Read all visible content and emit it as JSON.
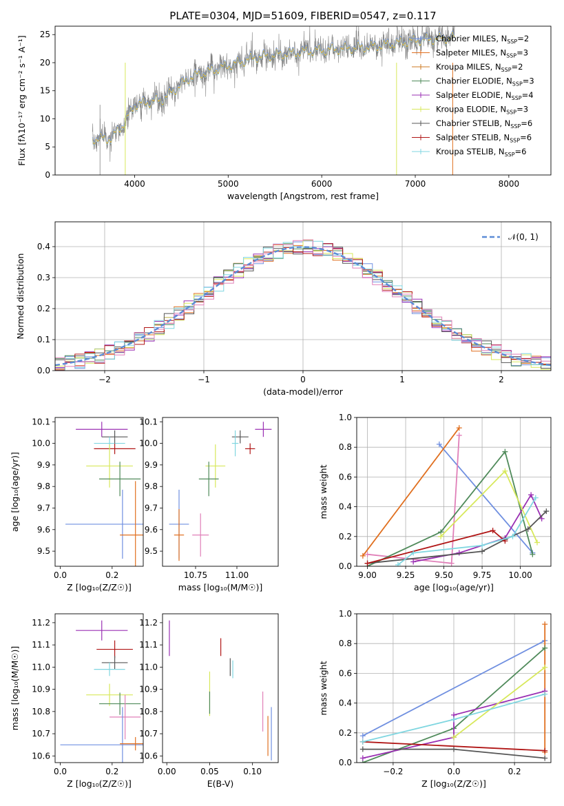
{
  "figure_title": "PLATE=0304, MJD=51609, FIBERID=0547, z=0.117",
  "colors": {
    "chabrier_miles": "#6f8fe0",
    "salpeter_miles": "#e06f1f",
    "kroupa_miles": "#cc7a22",
    "chabrier_elodie": "#4f8a5a",
    "salpeter_elodie": "#9a2fb3",
    "kroupa_elodie": "#d7e85a",
    "chabrier_stelib": "#555555",
    "salpeter_stelib": "#b01515",
    "kroupa_stelib": "#7fd6e0",
    "pink": "#e07fb8",
    "data": "#808080",
    "gauss": "#5b8bd6"
  },
  "chart_data": [
    {
      "id": "spectrum",
      "type": "line",
      "title": "PLATE=0304, MJD=51609, FIBERID=0547, z=0.117",
      "xlabel": "wavelength [Angstrom, rest frame]",
      "ylabel": "Flux [fλ10⁻¹⁷ erg cm⁻² s⁻¹ A⁻¹]",
      "xlim": [
        3150,
        8450
      ],
      "ylim": [
        0,
        26.5
      ],
      "xticks": [
        4000,
        5000,
        6000,
        7000,
        8000
      ],
      "yticks": [
        0,
        5,
        10,
        15,
        20,
        25
      ],
      "legend_position": "top-right",
      "legend": [
        {
          "name": "Chabrier MILES, N",
          "sub": "SSP",
          "suffix": "=2",
          "color_key": "chabrier_miles"
        },
        {
          "name": "Salpeter MILES, N",
          "sub": "SSP",
          "suffix": "=3",
          "color_key": "salpeter_miles"
        },
        {
          "name": "Kroupa MILES, N",
          "sub": "SSP",
          "suffix": "=2",
          "color_key": "kroupa_miles"
        },
        {
          "name": "Chabrier ELODIE, N",
          "sub": "SSP",
          "suffix": "=3",
          "color_key": "chabrier_elodie"
        },
        {
          "name": "Salpeter ELODIE, N",
          "sub": "SSP",
          "suffix": "=4",
          "color_key": "salpeter_elodie"
        },
        {
          "name": "Kroupa ELODIE, N",
          "sub": "SSP",
          "suffix": "=3",
          "color_key": "kroupa_elodie"
        },
        {
          "name": "Chabrier STELIB, N",
          "sub": "SSP",
          "suffix": "=6",
          "color_key": "chabrier_stelib"
        },
        {
          "name": "Salpeter STELIB, N",
          "sub": "SSP",
          "suffix": "=6",
          "color_key": "salpeter_stelib"
        },
        {
          "name": "Kroupa STELIB, N",
          "sub": "SSP",
          "suffix": "=6",
          "color_key": "kroupa_stelib"
        }
      ],
      "continuum": [
        [
          3550,
          6.5
        ],
        [
          3750,
          6.5
        ],
        [
          3900,
          9.5
        ],
        [
          4000,
          12.5
        ],
        [
          4300,
          13.5
        ],
        [
          4600,
          17.5
        ],
        [
          5000,
          19.5
        ],
        [
          5300,
          21
        ],
        [
          5800,
          22
        ],
        [
          6200,
          22.5
        ],
        [
          6600,
          23
        ],
        [
          7000,
          24
        ],
        [
          7400,
          24.5
        ]
      ]
    },
    {
      "id": "residuals",
      "type": "bar",
      "xlabel": "(data-model)/error",
      "ylabel": "Normed distribution",
      "xlim": [
        -2.5,
        2.5
      ],
      "ylim": [
        0,
        0.48
      ],
      "xticks": [
        -2,
        -1,
        0,
        1,
        2
      ],
      "yticks": [
        0.0,
        0.1,
        0.2,
        0.3,
        0.4
      ],
      "legend_position": "top-right",
      "gauss_label": "𝒩(0, 1)",
      "bin_width": 0.1
    },
    {
      "id": "age_vs_Z",
      "type": "scatter",
      "xlabel": "Z [log₁₀(Z/Z☉)]",
      "ylabel": "age  [log₁₀(age/yr)]",
      "xlim": [
        -0.02,
        0.32
      ],
      "ylim": [
        9.43,
        10.12
      ],
      "xticks": [
        0.0,
        0.2
      ],
      "yticks": [
        9.5,
        9.6,
        9.7,
        9.8,
        9.9,
        10.0,
        10.1
      ],
      "points": [
        {
          "color_key": "salpeter_elodie",
          "x": 0.16,
          "xerr": 0.1,
          "y": 10.065,
          "yerr": 0.035
        },
        {
          "color_key": "chabrier_stelib",
          "x": 0.21,
          "xerr": 0.05,
          "y": 10.03,
          "yerr": 0.03
        },
        {
          "color_key": "kroupa_stelib",
          "x": 0.19,
          "xerr": 0.06,
          "y": 10.0,
          "yerr": 0.03
        },
        {
          "color_key": "salpeter_stelib",
          "x": 0.21,
          "xerr": 0.08,
          "y": 9.975,
          "yerr": 0.025
        },
        {
          "color_key": "kroupa_elodie",
          "x": 0.19,
          "xerr": 0.09,
          "y": 9.895,
          "yerr": 0.1
        },
        {
          "color_key": "chabrier_elodie",
          "x": 0.23,
          "xerr": 0.08,
          "y": 9.835,
          "yerr": 0.08
        },
        {
          "color_key": "chabrier_miles",
          "x": 0.24,
          "xerr": 0.22,
          "y": 9.625,
          "yerr": 0.16
        },
        {
          "color_key": "salpeter_miles",
          "x": 0.29,
          "xerr": 0.06,
          "y": 9.575,
          "yerr": 0.25
        }
      ]
    },
    {
      "id": "age_vs_mass",
      "type": "scatter",
      "xlabel": "mass [log₁₀(M/M☉)]",
      "ylabel": "",
      "xlim": [
        10.55,
        11.25
      ],
      "ylim": [
        9.43,
        10.12
      ],
      "xticks": [
        10.75,
        11.0
      ],
      "yticks": [
        9.5,
        9.6,
        9.7,
        9.8,
        9.9,
        10.0,
        10.1
      ],
      "points": [
        {
          "color_key": "salpeter_elodie",
          "x": 11.16,
          "xerr": 0.05,
          "y": 10.065,
          "yerr": 0.035
        },
        {
          "color_key": "chabrier_stelib",
          "x": 11.02,
          "xerr": 0.05,
          "y": 10.03,
          "yerr": 0.03
        },
        {
          "color_key": "kroupa_stelib",
          "x": 10.99,
          "xerr": 0.02,
          "y": 10.0,
          "yerr": 0.06
        },
        {
          "color_key": "salpeter_stelib",
          "x": 11.08,
          "xerr": 0.03,
          "y": 9.975,
          "yerr": 0.025
        },
        {
          "color_key": "kroupa_elodie",
          "x": 10.87,
          "xerr": 0.06,
          "y": 9.895,
          "yerr": 0.1
        },
        {
          "color_key": "chabrier_elodie",
          "x": 10.83,
          "xerr": 0.06,
          "y": 9.835,
          "yerr": 0.08
        },
        {
          "color_key": "chabrier_miles",
          "x": 10.65,
          "xerr": 0.06,
          "y": 9.625,
          "yerr": 0.16
        },
        {
          "color_key": "pink",
          "x": 10.78,
          "xerr": 0.05,
          "y": 9.575,
          "yerr": 0.1
        },
        {
          "color_key": "salpeter_miles",
          "x": 10.65,
          "xerr": 0.03,
          "y": 9.575,
          "yerr": 0.12
        }
      ]
    },
    {
      "id": "weight_vs_age",
      "type": "line",
      "xlabel": "age  [log₁₀(age/yr)]",
      "ylabel": "mass weight",
      "xlim": [
        8.93,
        10.2
      ],
      "ylim": [
        0,
        1.0
      ],
      "xticks": [
        9.0,
        9.25,
        9.5,
        9.75,
        10.0
      ],
      "yticks": [
        0.0,
        0.2,
        0.4,
        0.6,
        0.8,
        1.0
      ],
      "series": [
        {
          "color_key": "chabrier_miles",
          "x": [
            9.47,
            10.08
          ],
          "y": [
            0.82,
            0.09
          ]
        },
        {
          "color_key": "salpeter_miles",
          "x": [
            8.97,
            9.6
          ],
          "y": [
            0.07,
            0.93
          ]
        },
        {
          "color_key": "pink",
          "x": [
            9.0,
            9.55,
            9.6
          ],
          "y": [
            0.08,
            0.02,
            0.88
          ]
        },
        {
          "color_key": "chabrier_elodie",
          "x": [
            9.0,
            9.48,
            9.9,
            10.08
          ],
          "y": [
            0.0,
            0.23,
            0.77,
            0.08
          ]
        },
        {
          "color_key": "salpeter_elodie",
          "x": [
            9.3,
            9.6,
            9.9,
            10.07,
            10.14
          ],
          "y": [
            0.03,
            0.09,
            0.19,
            0.48,
            0.32
          ]
        },
        {
          "color_key": "kroupa_elodie",
          "x": [
            9.48,
            9.9,
            10.11
          ],
          "y": [
            0.2,
            0.64,
            0.16
          ]
        },
        {
          "color_key": "chabrier_stelib",
          "x": [
            9.0,
            9.75,
            9.9,
            10.05,
            10.17
          ],
          "y": [
            0.02,
            0.1,
            0.18,
            0.25,
            0.37
          ]
        },
        {
          "color_key": "salpeter_stelib",
          "x": [
            9.0,
            9.82,
            9.9
          ],
          "y": [
            0.02,
            0.24,
            0.17
          ]
        },
        {
          "color_key": "kroupa_stelib",
          "x": [
            9.2,
            9.3,
            9.75,
            9.95,
            10.1
          ],
          "y": [
            0.01,
            0.09,
            0.14,
            0.2,
            0.46
          ]
        }
      ]
    },
    {
      "id": "mass_vs_Z",
      "type": "scatter",
      "xlabel": "Z [log₁₀(Z/Z☉)]",
      "ylabel": "mass [log₁₀(M/M☉)]",
      "xlim": [
        -0.02,
        0.32
      ],
      "ylim": [
        10.57,
        11.24
      ],
      "xticks": [
        0.0,
        0.2
      ],
      "yticks": [
        10.6,
        10.7,
        10.8,
        10.9,
        11.0,
        11.1,
        11.2
      ],
      "points": [
        {
          "color_key": "salpeter_elodie",
          "x": 0.16,
          "xerr": 0.1,
          "y": 11.165,
          "yerr": 0.045
        },
        {
          "color_key": "salpeter_stelib",
          "x": 0.21,
          "xerr": 0.07,
          "y": 11.08,
          "yerr": 0.04
        },
        {
          "color_key": "chabrier_stelib",
          "x": 0.21,
          "xerr": 0.05,
          "y": 11.02,
          "yerr": 0.03
        },
        {
          "color_key": "kroupa_stelib",
          "x": 0.19,
          "xerr": 0.06,
          "y": 10.99,
          "yerr": 0.03
        },
        {
          "color_key": "kroupa_elodie",
          "x": 0.19,
          "xerr": 0.09,
          "y": 10.875,
          "yerr": 0.05
        },
        {
          "color_key": "chabrier_elodie",
          "x": 0.23,
          "xerr": 0.08,
          "y": 10.835,
          "yerr": 0.05
        },
        {
          "color_key": "pink",
          "x": 0.25,
          "xerr": 0.06,
          "y": 10.775,
          "yerr": 0.1
        },
        {
          "color_key": "chabrier_miles",
          "x": 0.24,
          "xerr": 0.24,
          "y": 10.65,
          "yerr": 0.17
        },
        {
          "color_key": "salpeter_miles",
          "x": 0.29,
          "xerr": 0.06,
          "y": 10.655,
          "yerr": 0.03
        }
      ]
    },
    {
      "id": "mass_vs_ebv",
      "type": "scatter",
      "xlabel": "E(B-V)",
      "ylabel": "",
      "xlim": [
        -0.005,
        0.13
      ],
      "ylim": [
        10.57,
        11.24
      ],
      "xticks": [
        0.0,
        0.05,
        0.1
      ],
      "yticks": [
        10.6,
        10.7,
        10.8,
        10.9,
        11.0,
        11.1,
        11.2
      ],
      "points": [
        {
          "color_key": "salpeter_elodie",
          "x": 0.003,
          "y": 11.13,
          "yerr": 0.08
        },
        {
          "color_key": "salpeter_stelib",
          "x": 0.063,
          "y": 11.09,
          "yerr": 0.04
        },
        {
          "color_key": "chabrier_stelib",
          "x": 0.074,
          "y": 11.0,
          "yerr": 0.04
        },
        {
          "color_key": "kroupa_stelib",
          "x": 0.077,
          "y": 10.99,
          "yerr": 0.04
        },
        {
          "color_key": "kroupa_elodie",
          "x": 0.05,
          "y": 10.88,
          "yerr": 0.1
        },
        {
          "color_key": "chabrier_elodie",
          "x": 0.05,
          "y": 10.84,
          "yerr": 0.05
        },
        {
          "color_key": "pink",
          "x": 0.112,
          "y": 10.8,
          "yerr": 0.09
        },
        {
          "color_key": "salpeter_miles",
          "x": 0.118,
          "y": 10.69,
          "yerr": 0.09
        },
        {
          "color_key": "chabrier_miles",
          "x": 0.122,
          "y": 10.7,
          "yerr": 0.12
        }
      ]
    },
    {
      "id": "weight_vs_Z",
      "type": "line",
      "xlabel": "Z [log₁₀(Z/Z☉)]",
      "ylabel": "mass weight",
      "xlim": [
        -0.32,
        0.32
      ],
      "ylim": [
        0,
        1.0
      ],
      "xticks": [
        -0.2,
        0.0,
        0.2
      ],
      "yticks": [
        0.0,
        0.2,
        0.4,
        0.6,
        0.8,
        1.0
      ],
      "series": [
        {
          "color_key": "chabrier_miles",
          "x": [
            -0.3,
            0.3
          ],
          "y": [
            0.18,
            0.82
          ]
        },
        {
          "color_key": "salpeter_miles",
          "x": [
            0.3,
            0.3
          ],
          "y": [
            0.07,
            0.93
          ]
        },
        {
          "color_key": "chabrier_elodie",
          "x": [
            -0.3,
            0.0,
            0.3
          ],
          "y": [
            0.0,
            0.23,
            0.77
          ]
        },
        {
          "color_key": "salpeter_elodie",
          "x": [
            -0.3,
            0.0,
            0.0,
            0.3
          ],
          "y": [
            0.03,
            0.17,
            0.32,
            0.48
          ]
        },
        {
          "color_key": "kroupa_elodie",
          "x": [
            0.0,
            0.3
          ],
          "y": [
            0.17,
            0.64
          ]
        },
        {
          "color_key": "chabrier_stelib",
          "x": [
            -0.3,
            0.0,
            0.3
          ],
          "y": [
            0.09,
            0.09,
            0.03
          ]
        },
        {
          "color_key": "salpeter_stelib",
          "x": [
            -0.3,
            0.3
          ],
          "y": [
            0.14,
            0.08
          ]
        },
        {
          "color_key": "kroupa_stelib",
          "x": [
            -0.3,
            0.0,
            0.3
          ],
          "y": [
            0.14,
            0.29,
            0.46
          ]
        }
      ]
    }
  ]
}
